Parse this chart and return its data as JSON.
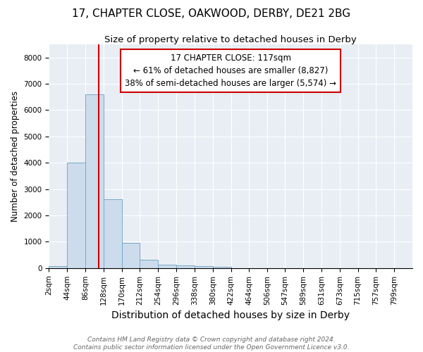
{
  "title": "17, CHAPTER CLOSE, OAKWOOD, DERBY, DE21 2BG",
  "subtitle": "Size of property relative to detached houses in Derby",
  "xlabel": "Distribution of detached houses by size in Derby",
  "ylabel": "Number of detached properties",
  "footer_line1": "Contains HM Land Registry data © Crown copyright and database right 2024.",
  "footer_line2": "Contains public sector information licensed under the Open Government Licence v3.0.",
  "annotation_title": "17 CHAPTER CLOSE: 117sqm",
  "annotation_line1": "← 61% of detached houses are smaller (8,827)",
  "annotation_line2": "38% of semi-detached houses are larger (5,574) →",
  "bar_edges": [
    2,
    44,
    86,
    128,
    170,
    212,
    254,
    296,
    338,
    380,
    422,
    464,
    506,
    547,
    589,
    631,
    673,
    715,
    757,
    799,
    841
  ],
  "bar_heights": [
    80,
    4000,
    6600,
    2620,
    960,
    320,
    130,
    110,
    65,
    50,
    0,
    0,
    0,
    0,
    0,
    0,
    0,
    0,
    0,
    0
  ],
  "bar_color": "#ccdcec",
  "bar_edge_color": "#7aaac8",
  "vline_x": 117,
  "vline_color": "#cc0000",
  "ylim": [
    0,
    8500
  ],
  "yticks": [
    0,
    1000,
    2000,
    3000,
    4000,
    5000,
    6000,
    7000,
    8000
  ],
  "annotation_box_color": "#cc0000",
  "annotation_box_facecolor": "white",
  "background_color": "#e8eef4",
  "grid_color": "white",
  "title_fontsize": 11,
  "subtitle_fontsize": 9.5,
  "xlabel_fontsize": 10,
  "ylabel_fontsize": 8.5,
  "tick_fontsize": 7.5,
  "annotation_fontsize": 8.5,
  "footer_fontsize": 6.5
}
